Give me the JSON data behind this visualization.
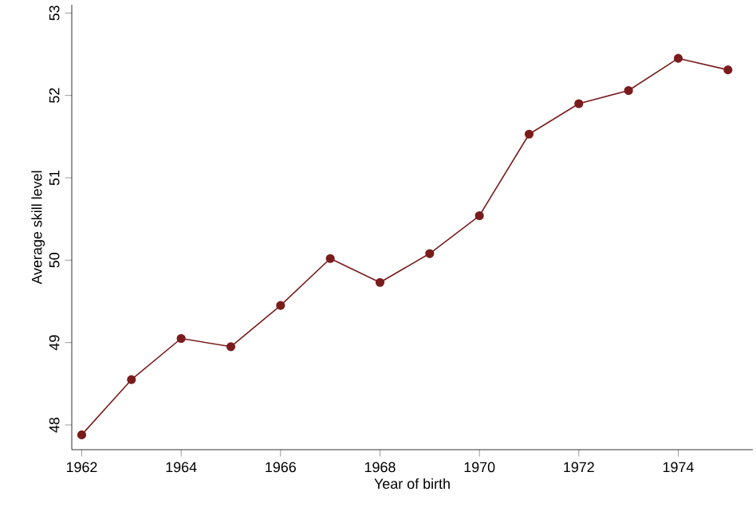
{
  "chart_data": {
    "type": "line",
    "xlabel": "Year of birth",
    "ylabel": "Average skill level",
    "x": [
      1962,
      1963,
      1964,
      1965,
      1966,
      1967,
      1968,
      1969,
      1970,
      1971,
      1972,
      1973,
      1974,
      1975
    ],
    "series": [
      {
        "color": "#7a1c1c",
        "values": [
          47.88,
          48.55,
          49.05,
          48.95,
          49.45,
          50.02,
          49.73,
          50.08,
          50.54,
          51.53,
          51.9,
          52.06,
          52.45,
          52.31
        ]
      }
    ],
    "xlim": [
      1961.8,
      1975.5
    ],
    "ylim": [
      47.7,
      53.1
    ],
    "xticks": [
      1962,
      1964,
      1966,
      1968,
      1970,
      1972,
      1974
    ],
    "yticks": [
      48,
      49,
      50,
      51,
      52,
      53
    ],
    "grid": false,
    "marker": "circle",
    "line_style": "solid"
  }
}
